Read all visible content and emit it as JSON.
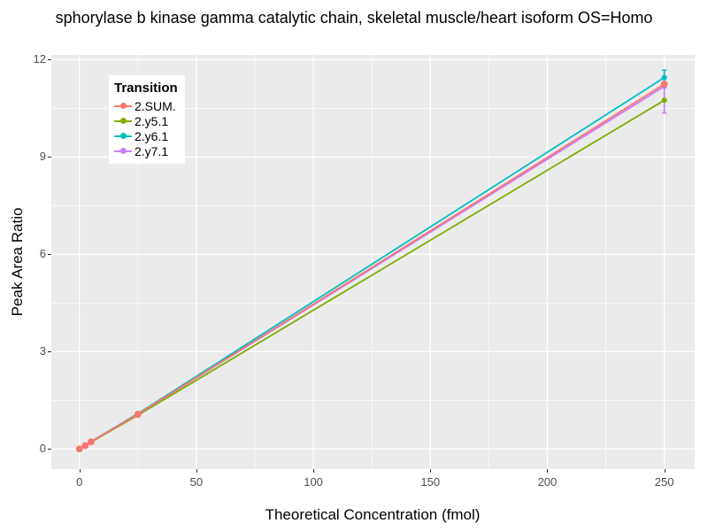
{
  "chart_data": {
    "type": "line",
    "title": "sphorylase b kinase gamma catalytic chain, skeletal muscle/heart isoform OS=Homo",
    "xlabel": "Theoretical Concentration (fmol)",
    "ylabel": "Peak Area Ratio",
    "legend_title": "Transition",
    "legend_position": "top-left-inside",
    "grid": "white-on-gray",
    "panel_color": "#EBEBEB",
    "gridline_color": "#FFFFFF",
    "tick_text_color": "#4D4D4D",
    "xlim": [
      -12,
      263
    ],
    "ylim": [
      -0.62,
      12.15
    ],
    "x_ticks": [
      0,
      50,
      100,
      150,
      200,
      250
    ],
    "y_ticks": [
      0,
      3,
      6,
      9,
      12
    ],
    "x_minor_ticks": [
      25,
      75,
      125,
      175,
      225
    ],
    "y_minor_ticks": [
      1.5,
      4.5,
      7.5,
      10.5
    ],
    "x": [
      0,
      2.5,
      5,
      25,
      250
    ],
    "series": [
      {
        "name": "2.SUM.",
        "color": "#F8766D",
        "values": [
          0,
          0.1,
          0.22,
          1.07,
          11.25
        ]
      },
      {
        "name": "2.y5.1",
        "color": "#7CAE00",
        "values": [
          0,
          0.1,
          0.21,
          1.04,
          10.75
        ]
      },
      {
        "name": "2.y6.1",
        "color": "#00BFC4",
        "values": [
          0,
          0.1,
          0.23,
          1.09,
          11.45
        ],
        "error_bar": {
          "x": 250,
          "low": 11.2,
          "high": 11.68
        }
      },
      {
        "name": "2.y7.1",
        "color": "#C77CFF",
        "values": [
          0,
          0.1,
          0.22,
          1.07,
          11.18
        ],
        "error_bar": {
          "x": 250,
          "low": 10.36,
          "high": 11.42
        }
      }
    ]
  }
}
